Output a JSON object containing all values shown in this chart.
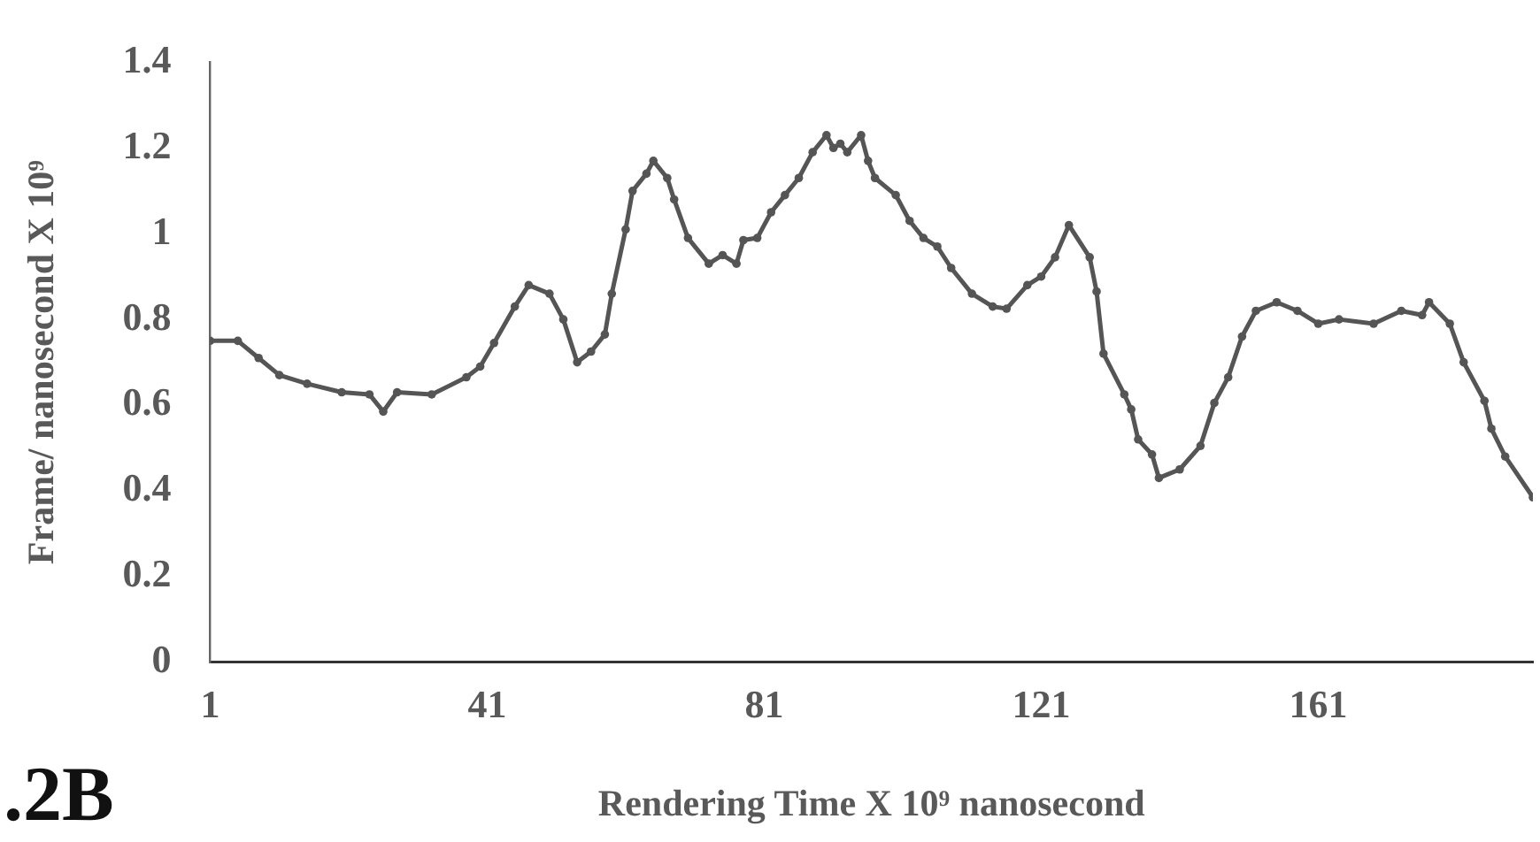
{
  "chart_data": {
    "type": "line",
    "xlabel": "Rendering Time X 10⁹ nanosecond",
    "ylabel": "Frame/ nanosecond X 10⁹",
    "annotations": [
      ".2B"
    ],
    "x": [
      1,
      5,
      8,
      11,
      15,
      20,
      24,
      26,
      28,
      33,
      38,
      40,
      42,
      45,
      47,
      50,
      52,
      54,
      56,
      58,
      59,
      61,
      62,
      64,
      65,
      67,
      68,
      70,
      73,
      75,
      77,
      78,
      80,
      82,
      84,
      86,
      88,
      90,
      91,
      92,
      93,
      95,
      96,
      97,
      100,
      102,
      104,
      106,
      108,
      111,
      114,
      116,
      119,
      121,
      123,
      125,
      128,
      129,
      130,
      133,
      134,
      135,
      137,
      138,
      141,
      144,
      146,
      148,
      150,
      152,
      155,
      158,
      161,
      164,
      169,
      173,
      176,
      177,
      180,
      182,
      185,
      186,
      188,
      192
    ],
    "series": [
      {
        "color": "#555555",
        "values": [
          0.75,
          0.75,
          0.71,
          0.67,
          0.65,
          0.63,
          0.625,
          0.585,
          0.63,
          0.625,
          0.665,
          0.69,
          0.745,
          0.83,
          0.88,
          0.86,
          0.8,
          0.7,
          0.725,
          0.765,
          0.86,
          1.01,
          1.1,
          1.14,
          1.17,
          1.13,
          1.08,
          0.99,
          0.93,
          0.95,
          0.93,
          0.985,
          0.99,
          1.05,
          1.09,
          1.13,
          1.19,
          1.23,
          1.2,
          1.21,
          1.19,
          1.23,
          1.17,
          1.13,
          1.09,
          1.03,
          0.99,
          0.97,
          0.92,
          0.86,
          0.83,
          0.825,
          0.88,
          0.9,
          0.945,
          1.02,
          0.945,
          0.865,
          0.72,
          0.625,
          0.59,
          0.52,
          0.485,
          0.43,
          0.45,
          0.505,
          0.605,
          0.665,
          0.76,
          0.82,
          0.84,
          0.82,
          0.79,
          0.8,
          0.79,
          0.82,
          0.81,
          0.84,
          0.79,
          0.7,
          0.61,
          0.545,
          0.48,
          0.385
        ]
      }
    ],
    "xlim": [
      1,
      192
    ],
    "xticks": [
      1,
      41,
      81,
      121,
      161
    ],
    "ylim": [
      0,
      1.4
    ],
    "yticks": [
      0,
      0.2,
      0.4,
      0.6,
      0.8,
      1,
      1.2,
      1.4
    ],
    "grid": false,
    "legend": false,
    "marker": "circle",
    "line_style": "solid"
  }
}
